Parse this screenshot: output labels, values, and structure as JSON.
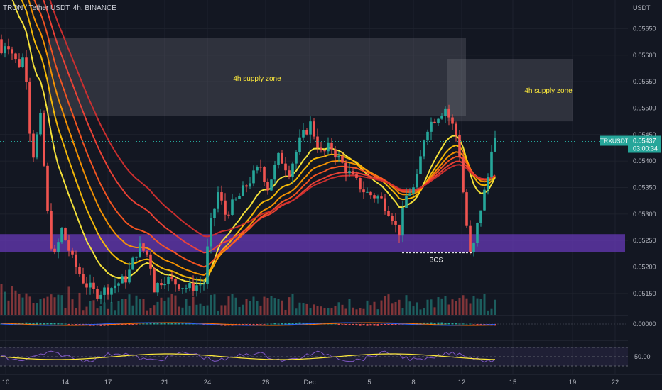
{
  "header": {
    "symbol_line": "TRON / Tether USDT, 4h, BINANCE"
  },
  "price_axis": {
    "currency": "USDT",
    "ticks": [
      "0.05650",
      "0.05600",
      "0.05550",
      "0.05500",
      "0.05450",
      "0.05400",
      "0.05350",
      "0.05300",
      "0.05250",
      "0.05200",
      "0.05150"
    ]
  },
  "osc_axis": {
    "macd_label": "0.00000",
    "rsi_label": "50.00"
  },
  "last_price": {
    "ticker": "TRXUSDT",
    "value": "0.05437",
    "countdown": "03:00:34",
    "color": "#26a69a"
  },
  "date_axis": [
    "10",
    "14",
    "17",
    "21",
    "24",
    "28",
    "Dec",
    "5",
    "8",
    "12",
    "15",
    "19",
    "22"
  ],
  "chart_data": {
    "type": "candlestick",
    "title": "TRON / Tether USDT, 4h, BINANCE",
    "y_unit": "USDT",
    "ylim": [
      0.05115,
      0.0568
    ],
    "annotations": [
      {
        "label": "4h supply zone",
        "range": [
          0.05485,
          0.05632
        ],
        "color": "#9598a1"
      },
      {
        "label": "4h supply zone",
        "range": [
          0.05475,
          0.05593
        ],
        "color": "#9598a1"
      },
      {
        "label": "",
        "range": [
          0.05228,
          0.05262
        ],
        "color": "#673ab7"
      },
      {
        "label": "BOS",
        "level": 0.0524,
        "color": "#ffffff"
      }
    ],
    "series": [
      {
        "name": "",
        "type": "ema_ribbon",
        "colors": [
          "#ffeb3b",
          "#ffc107",
          "#ff9800",
          "#ff5722",
          "#f44336",
          "#d32f2f"
        ]
      },
      {
        "name": "",
        "type": "volume"
      },
      {
        "name": "",
        "type": "macd"
      },
      {
        "name": "",
        "type": "rsi"
      }
    ],
    "grid": true
  }
}
